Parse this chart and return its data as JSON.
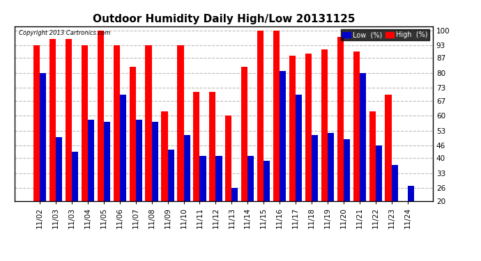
{
  "title": "Outdoor Humidity Daily High/Low 20131125",
  "copyright": "Copyright 2013 Cartronics.com",
  "dates": [
    "11/02",
    "11/03",
    "11/03",
    "11/04",
    "11/05",
    "11/06",
    "11/07",
    "11/08",
    "11/09",
    "11/10",
    "11/11",
    "11/12",
    "11/13",
    "11/14",
    "11/15",
    "11/16",
    "11/17",
    "11/18",
    "11/19",
    "11/20",
    "11/21",
    "11/22",
    "11/23",
    "11/24"
  ],
  "high_values": [
    93,
    96,
    96,
    93,
    100,
    93,
    83,
    93,
    62,
    93,
    71,
    71,
    60,
    83,
    100,
    100,
    88,
    89,
    91,
    97,
    90,
    62,
    70,
    20
  ],
  "low_values": [
    80,
    50,
    43,
    58,
    57,
    70,
    58,
    57,
    44,
    51,
    41,
    41,
    26,
    41,
    39,
    81,
    70,
    51,
    52,
    49,
    80,
    46,
    37,
    27
  ],
  "bar_color_high": "#ff0000",
  "bar_color_low": "#0000cc",
  "background_color": "#ffffff",
  "grid_color": "#bbbbbb",
  "yticks": [
    20,
    26,
    33,
    40,
    46,
    53,
    60,
    67,
    73,
    80,
    87,
    93,
    100
  ],
  "ymin": 20,
  "ymax": 102,
  "title_fontsize": 11,
  "tick_fontsize": 7.5,
  "legend_low_label": "Low  (%)",
  "legend_high_label": "High  (%)"
}
